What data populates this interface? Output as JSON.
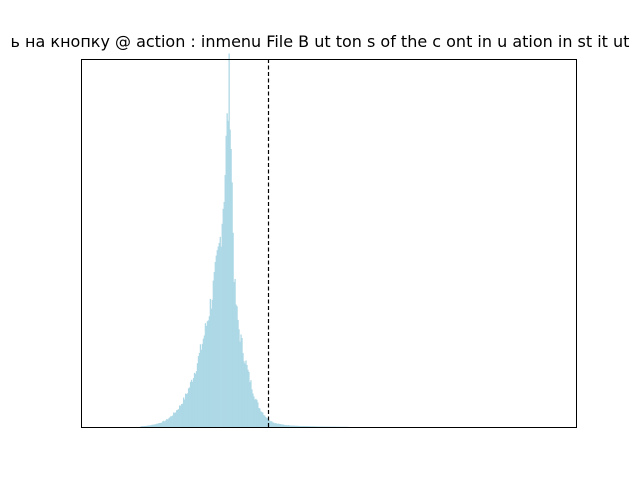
{
  "chart_data": {
    "type": "bar",
    "title": "ь на кнопку @ action : inmenu  File B ut ton s of the c ont in u ation in st it ut",
    "xlabel": "",
    "ylabel": "",
    "x_ticks_shown": false,
    "y_ticks_shown": false,
    "grid": false,
    "xlim": [
      0,
      1000
    ],
    "ylim": [
      0,
      1.0
    ],
    "bar_color": "#add8e6",
    "reference_line": {
      "x": 378,
      "style": "dashed",
      "color": "#000000"
    },
    "series": [
      {
        "x": [
          120,
          130,
          140,
          150,
          160,
          170,
          180,
          190,
          200,
          210,
          220,
          230,
          240,
          250,
          260,
          270,
          275,
          280,
          285,
          290,
          293,
          296,
          298,
          300,
          302,
          304,
          306,
          308,
          310,
          315,
          320,
          330,
          340,
          350,
          360,
          370,
          378,
          390,
          410,
          440,
          480,
          540
        ],
        "values": [
          0.002,
          0.003,
          0.005,
          0.008,
          0.012,
          0.018,
          0.028,
          0.042,
          0.06,
          0.085,
          0.118,
          0.16,
          0.21,
          0.27,
          0.34,
          0.42,
          0.47,
          0.52,
          0.6,
          0.7,
          0.8,
          0.88,
          0.95,
          1.0,
          0.88,
          0.75,
          0.62,
          0.5,
          0.4,
          0.32,
          0.27,
          0.2,
          0.14,
          0.09,
          0.055,
          0.035,
          0.022,
          0.012,
          0.006,
          0.003,
          0.0015,
          0.0005
        ]
      }
    ]
  }
}
